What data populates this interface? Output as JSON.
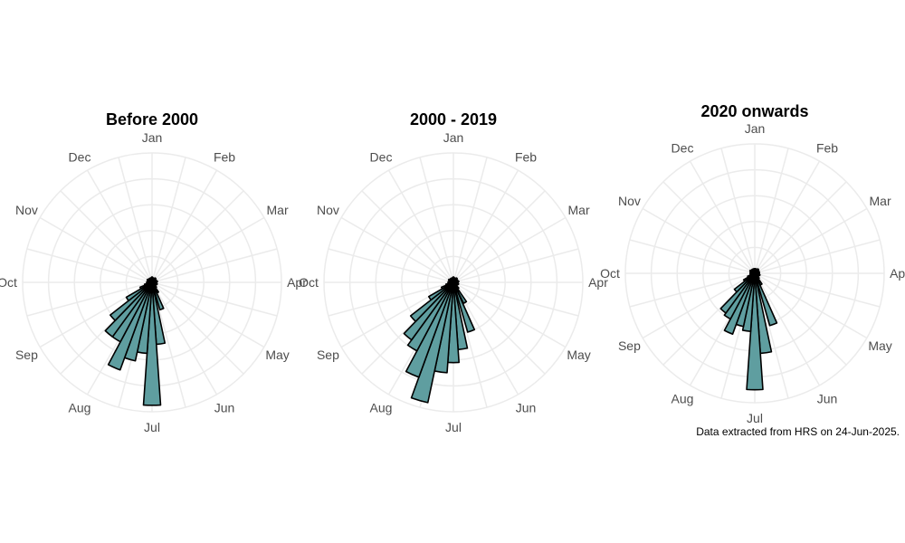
{
  "colors": {
    "bar": "#5f9ea0",
    "bar_stroke": "#000000",
    "grid": "#ebebeb",
    "text": "#4d4d4d"
  },
  "caption": "Data extracted from HRS on 24-Jun-2025.",
  "chart_data": [
    {
      "type": "polar-bar",
      "title": "Before 2000",
      "months": [
        "Jan",
        "Feb",
        "Mar",
        "Apr",
        "May",
        "Jun",
        "Jul",
        "Aug",
        "Sep",
        "Oct",
        "Nov",
        "Dec"
      ],
      "radial_max": 1.0,
      "bins": [
        {
          "angle_deg": 172,
          "value": 0.48
        },
        {
          "angle_deg": 180,
          "value": 0.95
        },
        {
          "angle_deg": 188,
          "value": 0.55
        },
        {
          "angle_deg": 196,
          "value": 0.62
        },
        {
          "angle_deg": 204,
          "value": 0.72
        },
        {
          "angle_deg": 212,
          "value": 0.52
        },
        {
          "angle_deg": 220,
          "value": 0.52
        },
        {
          "angle_deg": 228,
          "value": 0.41
        },
        {
          "angle_deg": 236,
          "value": 0.23
        },
        {
          "angle_deg": 244,
          "value": 0.1
        },
        {
          "angle_deg": 252,
          "value": 0.06
        },
        {
          "angle_deg": 160,
          "value": 0.22
        },
        {
          "angle_deg": 150,
          "value": 0.09
        },
        {
          "angle_deg": 140,
          "value": 0.05
        },
        {
          "angle_deg": 110,
          "value": 0.04
        },
        {
          "angle_deg": 80,
          "value": 0.03
        },
        {
          "angle_deg": 40,
          "value": 0.03
        },
        {
          "angle_deg": 0,
          "value": 0.03
        },
        {
          "angle_deg": 300,
          "value": 0.03
        },
        {
          "angle_deg": 270,
          "value": 0.04
        }
      ]
    },
    {
      "type": "polar-bar",
      "title": "2000 - 2019",
      "months": [
        "Jan",
        "Feb",
        "Mar",
        "Apr",
        "May",
        "Jun",
        "Jul",
        "Aug",
        "Sep",
        "Oct",
        "Nov",
        "Dec"
      ],
      "radial_max": 1.0,
      "bins": [
        {
          "angle_deg": 172,
          "value": 0.52
        },
        {
          "angle_deg": 180,
          "value": 0.62
        },
        {
          "angle_deg": 188,
          "value": 0.7
        },
        {
          "angle_deg": 196,
          "value": 0.95
        },
        {
          "angle_deg": 204,
          "value": 0.78
        },
        {
          "angle_deg": 212,
          "value": 0.6
        },
        {
          "angle_deg": 220,
          "value": 0.55
        },
        {
          "angle_deg": 228,
          "value": 0.42
        },
        {
          "angle_deg": 236,
          "value": 0.22
        },
        {
          "angle_deg": 244,
          "value": 0.1
        },
        {
          "angle_deg": 252,
          "value": 0.06
        },
        {
          "angle_deg": 160,
          "value": 0.4
        },
        {
          "angle_deg": 150,
          "value": 0.18
        },
        {
          "angle_deg": 140,
          "value": 0.06
        },
        {
          "angle_deg": 110,
          "value": 0.04
        },
        {
          "angle_deg": 80,
          "value": 0.03
        },
        {
          "angle_deg": 40,
          "value": 0.03
        },
        {
          "angle_deg": 0,
          "value": 0.03
        },
        {
          "angle_deg": 300,
          "value": 0.03
        },
        {
          "angle_deg": 270,
          "value": 0.04
        }
      ]
    },
    {
      "type": "polar-bar",
      "title": "2020 onwards",
      "months": [
        "Jan",
        "Feb",
        "Mar",
        "Apr",
        "May",
        "Jun",
        "Jul",
        "Aug",
        "Sep",
        "Oct",
        "Nov",
        "Dec"
      ],
      "radial_max": 1.0,
      "bins": [
        {
          "angle_deg": 172,
          "value": 0.62
        },
        {
          "angle_deg": 180,
          "value": 0.9
        },
        {
          "angle_deg": 188,
          "value": 0.45
        },
        {
          "angle_deg": 196,
          "value": 0.42
        },
        {
          "angle_deg": 204,
          "value": 0.5
        },
        {
          "angle_deg": 212,
          "value": 0.4
        },
        {
          "angle_deg": 220,
          "value": 0.38
        },
        {
          "angle_deg": 228,
          "value": 0.2
        },
        {
          "angle_deg": 236,
          "value": 0.1
        },
        {
          "angle_deg": 244,
          "value": 0.06
        },
        {
          "angle_deg": 160,
          "value": 0.42
        },
        {
          "angle_deg": 150,
          "value": 0.1
        },
        {
          "angle_deg": 140,
          "value": 0.05
        },
        {
          "angle_deg": 110,
          "value": 0.04
        },
        {
          "angle_deg": 40,
          "value": 0.03
        },
        {
          "angle_deg": 300,
          "value": 0.03
        }
      ]
    }
  ]
}
